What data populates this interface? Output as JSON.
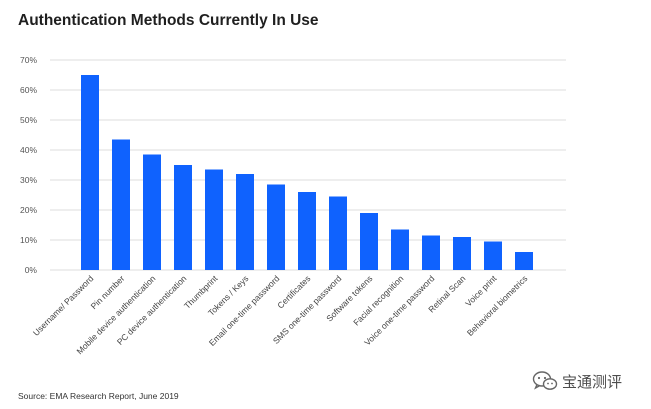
{
  "chart_data": {
    "type": "bar",
    "title": "Authentication Methods Currently In Use",
    "categories": [
      "Username/ Password",
      "Pin number",
      "Mobile device authentication",
      "PC device authentication",
      "Thumbprint",
      "Tokens / Keys",
      "Email one-time password",
      "Certificates",
      "SMS one-time password",
      "Software tokens",
      "Facial recognition",
      "Voice one-time password",
      "Retinal Scan",
      "Voice print",
      "Behavioral biometrics"
    ],
    "values": [
      65,
      43.5,
      38.5,
      35,
      33.5,
      32,
      28.5,
      26,
      24.5,
      19,
      13.5,
      11.5,
      11,
      9.5,
      6
    ],
    "value_unit": "%",
    "ylim": [
      0,
      70
    ],
    "yticks": [
      "0%",
      "10%",
      "20%",
      "30%",
      "40%",
      "50%",
      "60%",
      "70%"
    ],
    "xlabel": "",
    "ylabel": "",
    "grid": true,
    "bar_color": "#0f62fe"
  },
  "source_text": "Source: EMA Research Report, June 2019",
  "watermark_text": "宝通测评"
}
